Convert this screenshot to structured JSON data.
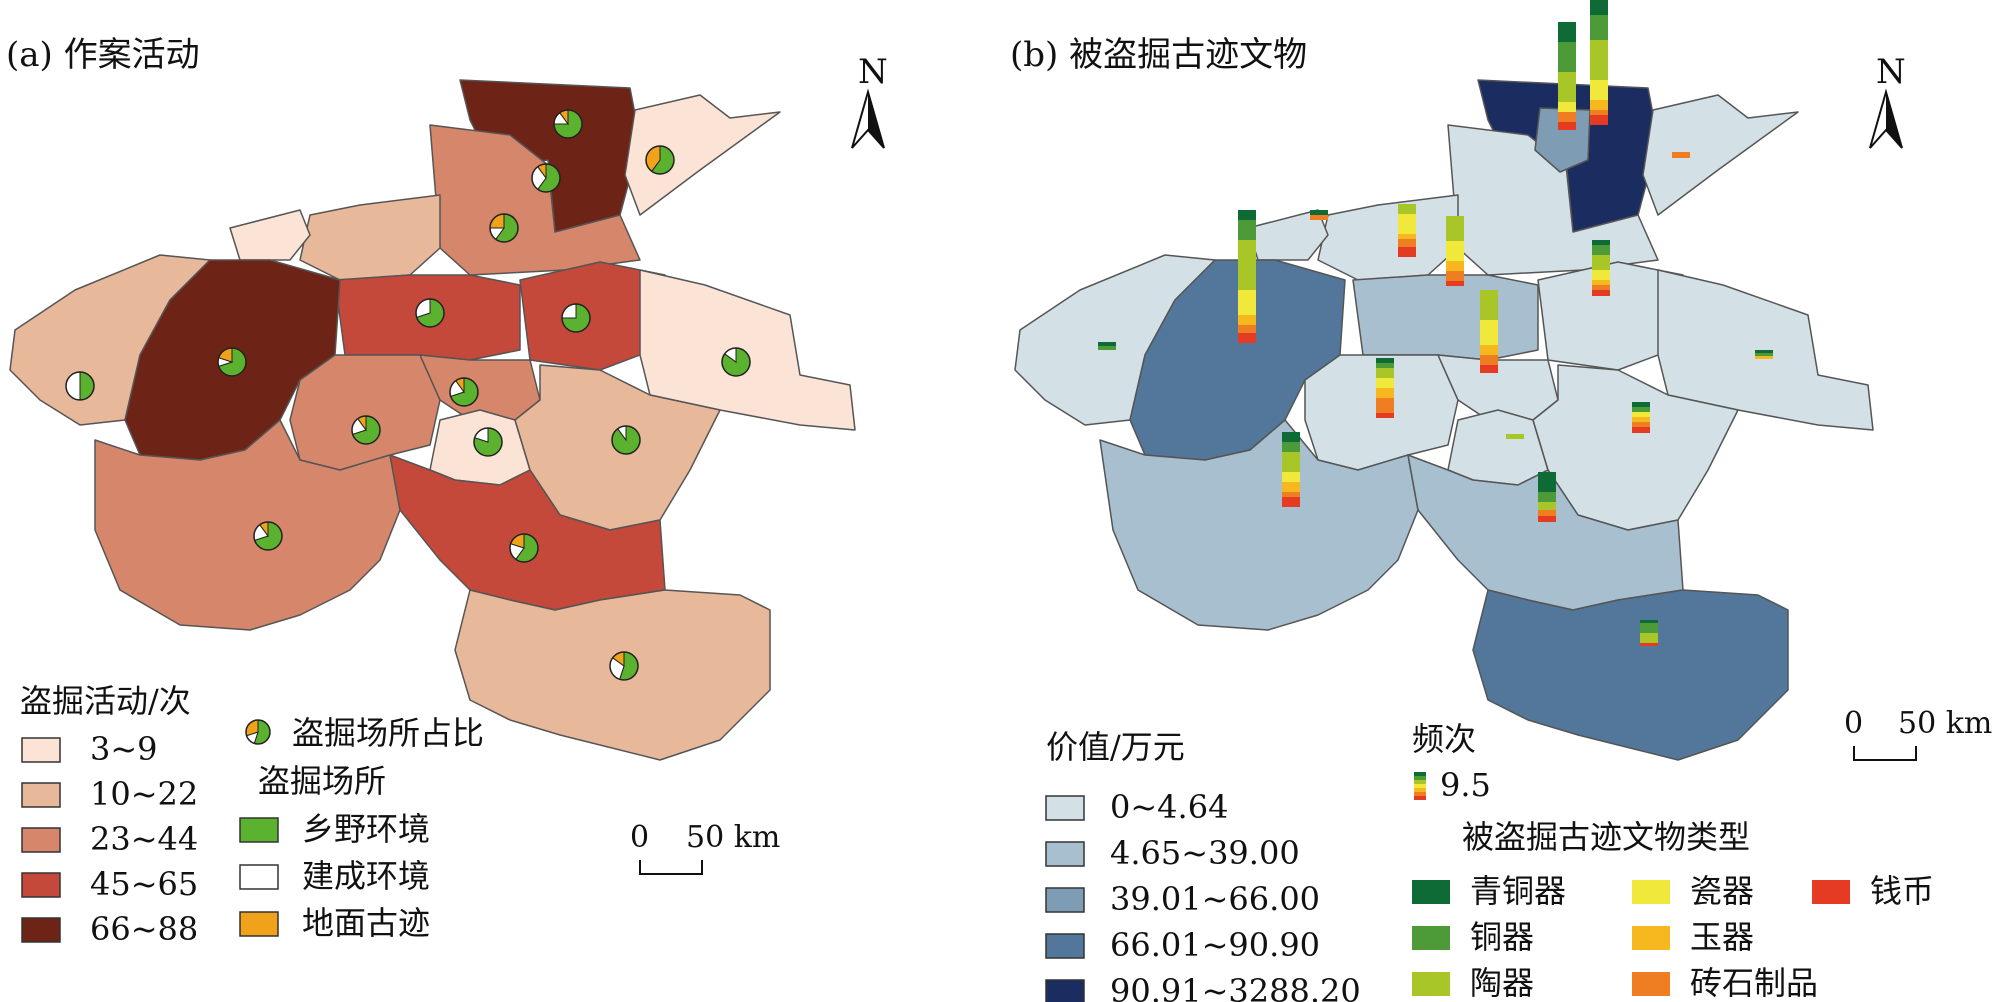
{
  "panel_a": {
    "title": "(a) 作案活动",
    "legend_title": "盗掘活动/次",
    "classes": [
      {
        "label": "3~9",
        "color": "#fbe4d5"
      },
      {
        "label": "10~22",
        "color": "#e8b89a"
      },
      {
        "label": "23~44",
        "color": "#d6866a"
      },
      {
        "label": "45~65",
        "color": "#c5493a"
      },
      {
        "label": "66~88",
        "color": "#6e2317"
      }
    ],
    "pie_legend_label": "盗掘场所占比",
    "site_legend_title": "盗掘场所",
    "sites": [
      {
        "label": "乡野环境",
        "color": "#5ab22e"
      },
      {
        "label": "建成环境",
        "color": "#ffffff"
      },
      {
        "label": "地面古迹",
        "color": "#f0a21b"
      }
    ],
    "scale_label_zero": "0",
    "scale_label_dist": "50 km",
    "north_label": "N"
  },
  "panel_b": {
    "title": "(b) 被盗掘古迹文物",
    "value_legend_title": "价值/万元",
    "classes": [
      {
        "label": "0~4.64",
        "color": "#d3e1e6"
      },
      {
        "label": "4.65~39.00",
        "color": "#a7bfcf"
      },
      {
        "label": "39.01~66.00",
        "color": "#7e9db5"
      },
      {
        "label": "66.01~90.90",
        "color": "#52779b"
      },
      {
        "label": "90.91~3288.20",
        "color": "#1b2d60"
      }
    ],
    "freq_legend_title": "频次",
    "freq_value": "9.5",
    "type_legend_title": "被盗掘古迹文物类型",
    "types": [
      {
        "label": "青铜器",
        "color": "#0e6b35"
      },
      {
        "label": "铜器",
        "color": "#4d9a38"
      },
      {
        "label": "陶器",
        "color": "#a8c628"
      },
      {
        "label": "瓷器",
        "color": "#f0e93c"
      },
      {
        "label": "玉器",
        "color": "#f6b81e"
      },
      {
        "label": "砖石制品",
        "color": "#ef7d22"
      },
      {
        "label": "钱币",
        "color": "#e63b23"
      }
    ],
    "scale_label_zero": "0",
    "scale_label_dist": "50 km",
    "north_label": "N"
  }
}
